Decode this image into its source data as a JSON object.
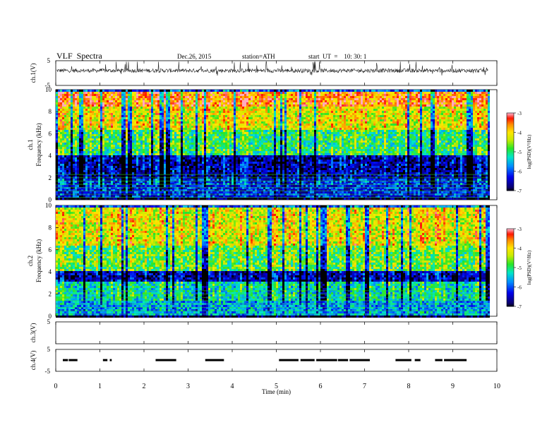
{
  "header": {
    "title": "VLF  Spectra",
    "date": "Dec.26, 2015",
    "station": "station=ATH",
    "start": "start  UT  =    10: 30: 1"
  },
  "chart_data": [
    {
      "type": "line",
      "ylabel": "ch.1(V)",
      "ylim": [
        -5,
        5
      ],
      "ytick_labels": [
        "5",
        "-5"
      ],
      "signal": "noisy waveform centred near +1 V with frequent spikes",
      "xlim": [
        0,
        10
      ]
    },
    {
      "type": "heatmap",
      "channel_label": "ch.1",
      "ylabel": "Frequency  (kHz)",
      "ylim": [
        0,
        10
      ],
      "yticks": [
        0,
        2,
        4,
        6,
        8,
        10
      ],
      "xlim": [
        0,
        10
      ],
      "data_extent_min": 9.8,
      "colorbar": {
        "label": "log(PSD)(V²/Hz)",
        "range": [
          -7,
          -3
        ],
        "ticks": [
          "-3",
          "-4",
          "-5",
          "-6",
          "-7"
        ]
      },
      "bands": [
        {
          "freq_kHz": [
            0,
            0.3
          ],
          "level": -7
        },
        {
          "freq_kHz": [
            0.3,
            2.0
          ],
          "level": -6.2
        },
        {
          "freq_kHz": [
            2.0,
            4.2
          ],
          "level": -6.6
        },
        {
          "freq_kHz": [
            4.2,
            6.5
          ],
          "level": -5.0
        },
        {
          "freq_kHz": [
            6.5,
            8.5
          ],
          "level": -4.2
        },
        {
          "freq_kHz": [
            8.5,
            10
          ],
          "level": -3.6
        }
      ]
    },
    {
      "type": "heatmap",
      "channel_label": "ch.2",
      "ylabel": "Frequency  (kHz)",
      "ylim": [
        0,
        10
      ],
      "yticks": [
        0,
        2,
        4,
        6,
        8,
        10
      ],
      "xlim": [
        0,
        10
      ],
      "data_extent_min": 9.8,
      "colorbar": {
        "label": "log(PSD)(V²/Hz)",
        "range": [
          -7,
          -3
        ],
        "ticks": [
          "-3",
          "-4",
          "-5",
          "-6",
          "-7"
        ]
      },
      "bands": [
        {
          "freq_kHz": [
            0,
            0.2
          ],
          "level": -7
        },
        {
          "freq_kHz": [
            0.2,
            1.5
          ],
          "level": -5.6
        },
        {
          "freq_kHz": [
            1.5,
            3.2
          ],
          "level": -5.3
        },
        {
          "freq_kHz": [
            3.2,
            4.2
          ],
          "level": -6.6
        },
        {
          "freq_kHz": [
            4.2,
            6.5
          ],
          "level": -4.8
        },
        {
          "freq_kHz": [
            6.5,
            10
          ],
          "level": -4.2
        }
      ]
    },
    {
      "type": "line",
      "ylabel": "ch.3(V)",
      "ylim": [
        -5,
        5
      ],
      "ytick_labels": [
        "5"
      ],
      "signal": "empty",
      "xlim": [
        0,
        10
      ]
    },
    {
      "type": "line",
      "ylabel": "ch.4(V)",
      "ylim": [
        -5,
        5
      ],
      "ytick_labels": [
        "5",
        "-5"
      ],
      "signal": "intermittent pulse train near 0 V",
      "xlim": [
        0,
        10
      ],
      "xlabel": "Time  (min)",
      "xticks": [
        0,
        1,
        2,
        3,
        4,
        5,
        6,
        7,
        8,
        9,
        10
      ]
    }
  ]
}
